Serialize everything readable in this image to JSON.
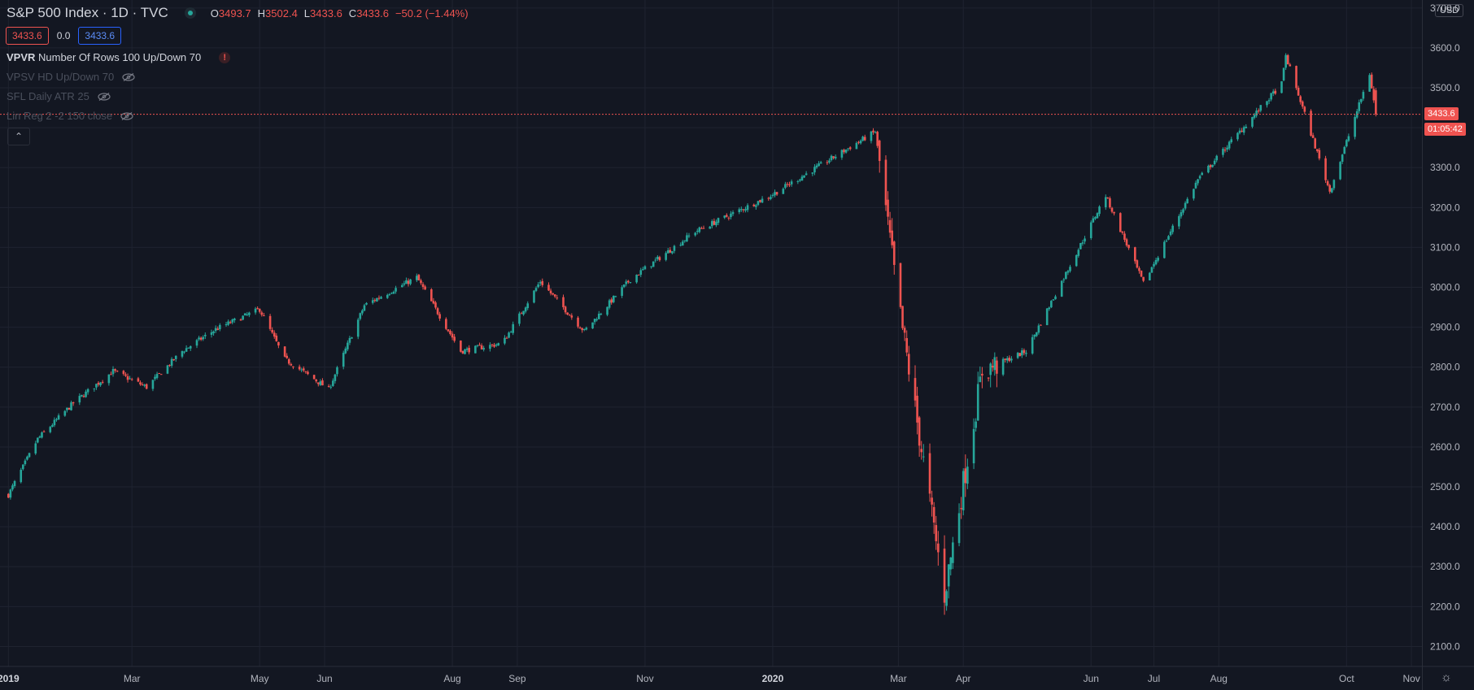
{
  "legend": {
    "title": "S&P 500 Index · 1D · TVC",
    "open_key": "O",
    "open": "3493.7",
    "high_key": "H",
    "high": "3502.4",
    "low_key": "L",
    "low": "3433.6",
    "close_key": "C",
    "close": "3433.6",
    "change": "−50.2 (−1.44%)"
  },
  "price_boxes": {
    "bid": "3433.6",
    "spread": "0.0",
    "ask": "3433.6"
  },
  "indicators": [
    {
      "name": "VPVR",
      "params": "Number Of Rows 100 Up/Down 70",
      "status": "warning"
    },
    {
      "name": "VPSV HD Up/Down 70",
      "status": "hidden"
    },
    {
      "name": "SFL Daily ATR 25",
      "status": "hidden"
    },
    {
      "name": "Lin Reg 2 -2 150 close",
      "status": "hidden"
    }
  ],
  "currency": "USD",
  "last_price_label": "3433.6",
  "countdown_label": "01:05:42",
  "colors": {
    "up": "#26a69a",
    "down": "#ef5350",
    "background": "#131722",
    "grid": "#1f2330",
    "price_line": "#ef5350"
  },
  "icons": [
    "alert-icon",
    "eye-off-icon",
    "chevron-up-icon",
    "gear-icon"
  ],
  "chart_data": {
    "type": "candlestick",
    "title": "S&P 500 Index",
    "ylim": [
      2050,
      3720
    ],
    "y_ticks": [
      "2100.0",
      "2200.0",
      "2300.0",
      "2400.0",
      "2500.0",
      "2600.0",
      "2700.0",
      "2800.0",
      "2900.0",
      "3000.0",
      "3100.0",
      "3200.0",
      "3300.0",
      "3400.0",
      "3500.0",
      "3600.0",
      "3700.0"
    ],
    "x_ticks": [
      "2019",
      "Mar",
      "May",
      "Jun",
      "Aug",
      "Sep",
      "Nov",
      "2020",
      "Mar",
      "Apr",
      "Jun",
      "Jul",
      "Aug",
      "Oct",
      "Nov"
    ],
    "x_tick_dates": [
      "2019-01-01",
      "2019-03-01",
      "2019-05-01",
      "2019-06-01",
      "2019-08-01",
      "2019-09-01",
      "2019-11-01",
      "2020-01-01",
      "2020-03-01",
      "2020-04-01",
      "2020-06-01",
      "2020-07-01",
      "2020-08-01",
      "2020-10-01",
      "2020-11-01"
    ],
    "last_price": 3433.6,
    "series_path": [
      [
        "2019-01-01",
        2480
      ],
      [
        "2019-01-15",
        2620
      ],
      [
        "2019-02-01",
        2710
      ],
      [
        "2019-02-20",
        2790
      ],
      [
        "2019-03-08",
        2750
      ],
      [
        "2019-03-25",
        2840
      ],
      [
        "2019-04-10",
        2895
      ],
      [
        "2019-05-01",
        2945
      ],
      [
        "2019-05-13",
        2820
      ],
      [
        "2019-06-03",
        2745
      ],
      [
        "2019-06-20",
        2955
      ],
      [
        "2019-07-15",
        3025
      ],
      [
        "2019-08-05",
        2840
      ],
      [
        "2019-08-25",
        2860
      ],
      [
        "2019-09-12",
        3015
      ],
      [
        "2019-10-03",
        2890
      ],
      [
        "2019-10-25",
        3020
      ],
      [
        "2019-11-25",
        3140
      ],
      [
        "2019-12-31",
        3230
      ],
      [
        "2020-02-19",
        3390
      ],
      [
        "2020-03-01",
        2960
      ],
      [
        "2020-03-23",
        2230
      ],
      [
        "2020-04-10",
        2790
      ],
      [
        "2020-05-01",
        2840
      ],
      [
        "2020-06-08",
        3230
      ],
      [
        "2020-06-26",
        3010
      ],
      [
        "2020-07-22",
        3270
      ],
      [
        "2020-08-31",
        3510
      ],
      [
        "2020-09-02",
        3580
      ],
      [
        "2020-09-23",
        3240
      ],
      [
        "2020-10-12",
        3535
      ],
      [
        "2020-10-15",
        3433.6
      ]
    ]
  }
}
